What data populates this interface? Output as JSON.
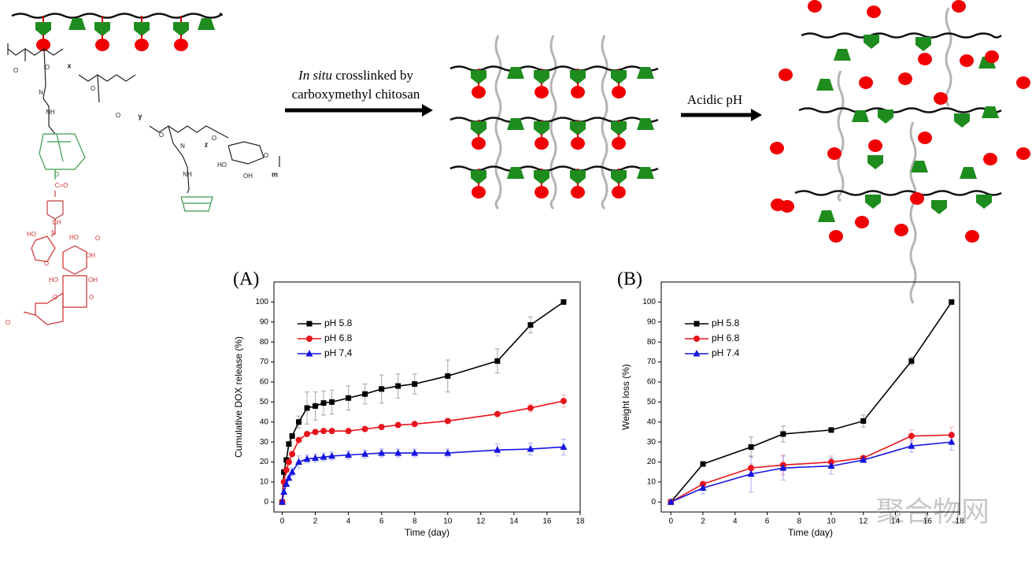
{
  "diagram": {
    "arrow1_label": {
      "italic": "In situ",
      "rest": " crosslinked by",
      "line2": "carboxymethyl chitosan"
    },
    "arrow2_label": "Acidic pH",
    "structure_labels": [
      "O",
      "O",
      "x",
      "O",
      "O",
      "y",
      "O",
      "N",
      "NH",
      "N",
      "NH",
      "z",
      "O",
      "HO",
      "OH",
      "O",
      "m",
      "O",
      "C=O",
      "CH",
      "N",
      "HO",
      "HO",
      "OH",
      "O",
      "HO",
      "OH",
      "O",
      "O",
      "O",
      "O"
    ],
    "watermark": "聚合物网"
  },
  "chart_data": [
    {
      "type": "line",
      "panel_label": "(A)",
      "xlabel": "Time (day)",
      "ylabel": "Cumulative DOX release (%)",
      "xlim": [
        -0.5,
        18
      ],
      "ylim": [
        -5,
        110
      ],
      "xticks": [
        0,
        2,
        4,
        6,
        8,
        10,
        12,
        14,
        16,
        18
      ],
      "yticks": [
        0,
        10,
        20,
        30,
        40,
        50,
        60,
        70,
        80,
        90,
        100
      ],
      "legend": "upper left",
      "x": [
        0,
        0.1,
        0.25,
        0.4,
        0.6,
        1,
        1.5,
        2,
        2.5,
        3,
        4,
        5,
        6,
        7,
        8,
        10,
        13,
        15,
        17
      ],
      "series": [
        {
          "name": "pH 5.8",
          "color": "#000000",
          "marker": "square",
          "values": [
            0,
            15,
            21,
            29,
            33,
            40,
            47,
            48,
            49.5,
            50,
            52,
            54,
            56.5,
            58,
            59,
            63,
            70.5,
            88.5,
            100
          ],
          "errors": [
            0,
            1,
            1,
            1,
            1,
            3,
            8,
            7,
            6,
            6,
            6,
            5,
            7,
            6,
            5,
            8,
            6,
            4,
            1
          ]
        },
        {
          "name": "pH 6.8",
          "color": "#e8141c",
          "marker": "circle",
          "values": [
            0,
            10,
            16,
            20,
            24,
            31,
            34,
            35,
            35.5,
            35.5,
            35.5,
            36.5,
            37.5,
            38.5,
            39,
            40.5,
            44,
            47,
            50.5
          ],
          "errors": [
            0,
            1,
            1,
            1,
            1,
            1,
            1,
            1,
            1,
            1,
            1,
            1,
            1,
            1,
            1,
            1,
            1,
            2,
            3
          ]
        },
        {
          "name": "pH 7,4",
          "color": "#1414e0",
          "marker": "triangle",
          "values": [
            0,
            5,
            9,
            12,
            15,
            20,
            21.5,
            22,
            22.5,
            23,
            23.5,
            24,
            24.5,
            24.5,
            24.5,
            24.5,
            26,
            26.5,
            27.5
          ],
          "errors": [
            0,
            1,
            1,
            1,
            2,
            3,
            2,
            2,
            2,
            2,
            2,
            2,
            2,
            2,
            2,
            2,
            3,
            3,
            4
          ]
        }
      ]
    },
    {
      "type": "line",
      "panel_label": "(B)",
      "xlabel": "Time (day)",
      "ylabel": "Weight loss (%)",
      "xlim": [
        -0.6,
        18
      ],
      "ylim": [
        -5,
        110
      ],
      "xticks": [
        0,
        2,
        4,
        6,
        8,
        10,
        12,
        14,
        16,
        18
      ],
      "yticks": [
        0,
        10,
        20,
        30,
        40,
        50,
        60,
        70,
        80,
        90,
        100
      ],
      "legend": "upper left",
      "x": [
        0,
        2,
        5,
        7,
        10,
        12,
        15,
        17.5
      ],
      "series": [
        {
          "name": "pH 5.8",
          "color": "#000000",
          "marker": "square",
          "values": [
            0,
            19,
            27.5,
            34,
            36,
            40.5,
            70.5,
            100
          ],
          "errors": [
            0,
            1,
            5,
            4,
            1,
            3,
            2,
            0
          ]
        },
        {
          "name": "pH 6.8",
          "color": "#e8141c",
          "marker": "circle",
          "values": [
            0,
            9,
            17,
            18.5,
            20,
            22,
            33,
            33.5
          ],
          "errors": [
            0,
            1,
            2,
            5,
            3,
            1,
            3,
            4
          ]
        },
        {
          "name": "pH 7.4",
          "color": "#1414e0",
          "marker": "triangle",
          "values": [
            0,
            7,
            14,
            17,
            18,
            21,
            28,
            30
          ],
          "errors": [
            0,
            3,
            9,
            6,
            4,
            1,
            3,
            4
          ]
        }
      ]
    }
  ]
}
